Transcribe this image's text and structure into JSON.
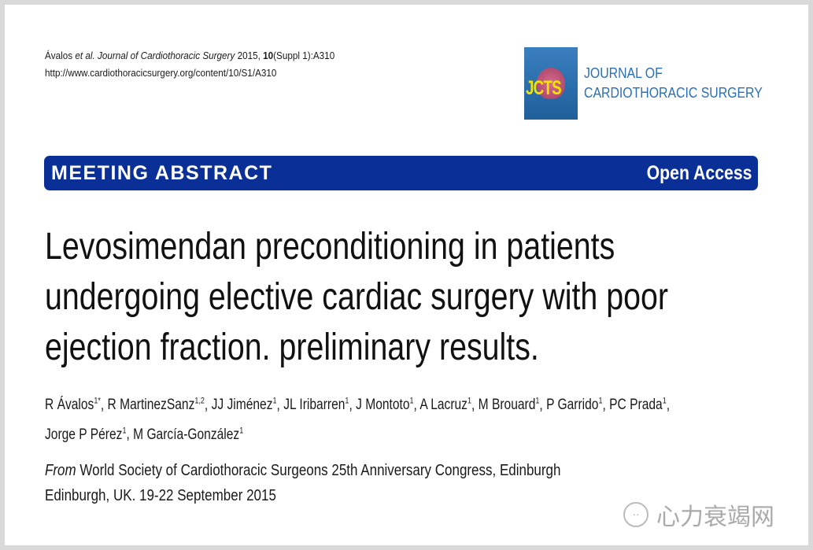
{
  "citation": {
    "authors_short": "Ávalos",
    "etal": "et al.",
    "journal": "Journal of Cardiothoracic Surgery",
    "year": "2015,",
    "volume": "10",
    "issue": "(Suppl 1):A310",
    "url": "http://www.cardiothoracicsurgery.org/content/10/S1/A310"
  },
  "logo": {
    "abbr": "JCTS",
    "line1": "JOURNAL OF",
    "line2": "CARDIOTHORACIC SURGERY"
  },
  "banner": {
    "type": "MEETING ABSTRACT",
    "access": "Open Access"
  },
  "title_lines": [
    "Levosimendan preconditioning in patients",
    "undergoing elective cardiac surgery with poor",
    "ejection fraction. preliminary results."
  ],
  "authors": [
    {
      "name": "R Ávalos",
      "sup": "1*"
    },
    {
      "name": "R MartinezSanz",
      "sup": "1,2"
    },
    {
      "name": "JJ Jiménez",
      "sup": "1"
    },
    {
      "name": "JL Iribarren",
      "sup": "1"
    },
    {
      "name": "J Montoto",
      "sup": "1"
    },
    {
      "name": "A Lacruz",
      "sup": "1"
    },
    {
      "name": "M Brouard",
      "sup": "1"
    },
    {
      "name": "P Garrido",
      "sup": "1"
    },
    {
      "name": "PC Prada",
      "sup": "1"
    },
    {
      "name": "Jorge P Pérez",
      "sup": "1"
    },
    {
      "name": "M García-González",
      "sup": "1"
    }
  ],
  "source": {
    "from_label": "From",
    "line1": "World Society of Cardiothoracic Surgeons 25th Anniversary Congress, Edinburgh",
    "line2": "Edinburgh, UK. 19-22 September 2015"
  },
  "watermark": {
    "text": "心力衰竭网",
    "icon": "wechat-icon"
  }
}
